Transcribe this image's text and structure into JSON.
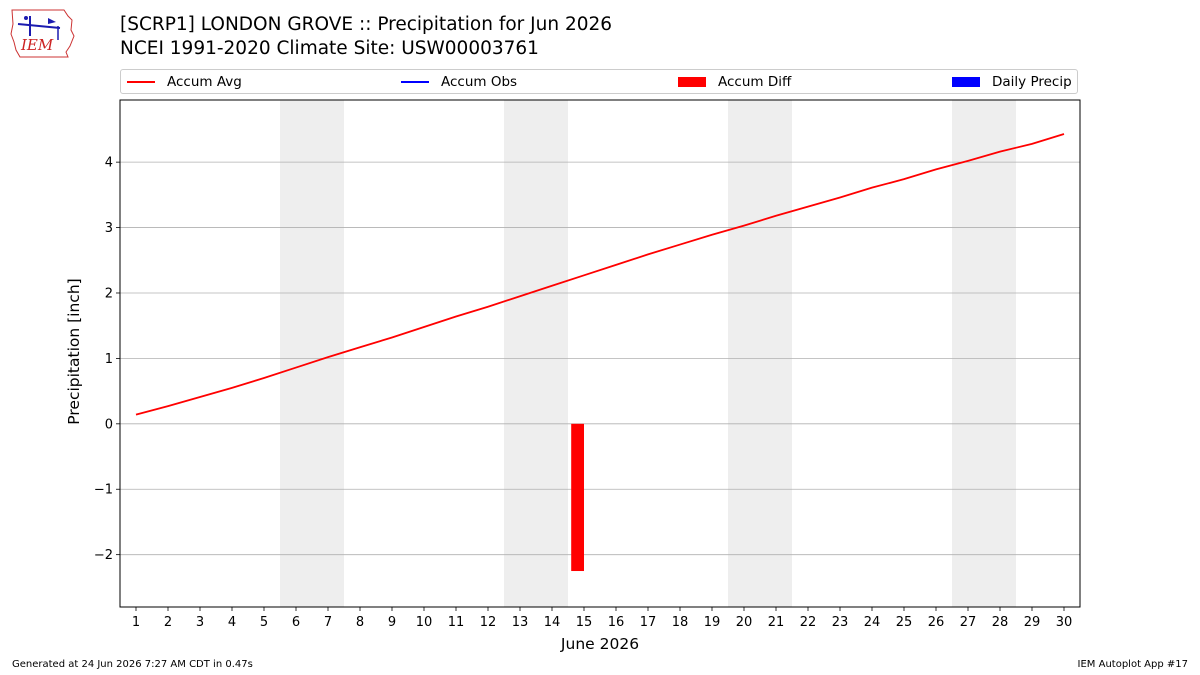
{
  "logo": {
    "text": "IEM"
  },
  "title": {
    "line1": "[SCRP1] LONDON GROVE :: Precipitation for Jun 2026",
    "line2": "NCEI 1991-2020 Climate Site: USW00003761"
  },
  "legend": {
    "accum_avg": "Accum Avg",
    "accum_obs": "Accum Obs",
    "accum_diff": "Accum Diff",
    "daily_precip": "Daily Precip"
  },
  "footer": {
    "left": "Generated at 24 Jun 2026 7:27 AM CDT in 0.47s",
    "right": "IEM Autoplot App #17"
  },
  "colors": {
    "accum_avg": "#ff0000",
    "accum_obs": "#0000ff",
    "accum_diff": "#ff0000",
    "daily_precip": "#0000ff",
    "weekend_shade": "#eeeeee",
    "grid": "#b0b0b0"
  },
  "chart_data": {
    "type": "line",
    "xlabel": "June 2026",
    "ylabel": "Precipitation [inch]",
    "xlim": [
      0.5,
      30.5
    ],
    "ylim": [
      -2.8,
      4.95
    ],
    "x_ticks": [
      1,
      2,
      3,
      4,
      5,
      6,
      7,
      8,
      9,
      10,
      11,
      12,
      13,
      14,
      15,
      16,
      17,
      18,
      19,
      20,
      21,
      22,
      23,
      24,
      25,
      26,
      27,
      28,
      29,
      30
    ],
    "y_ticks": [
      -2,
      -1,
      0,
      1,
      2,
      3,
      4
    ],
    "y_tick_labels": [
      "−2",
      "−1",
      "0",
      "1",
      "2",
      "3",
      "4"
    ],
    "grid": "horizontal",
    "legend_position": "top",
    "weekend_shading": [
      [
        6,
        7
      ],
      [
        13,
        14
      ],
      [
        20,
        21
      ],
      [
        27,
        28
      ]
    ],
    "series": [
      {
        "name": "Accum Avg",
        "kind": "line",
        "x": [
          1,
          2,
          3,
          4,
          5,
          6,
          7,
          8,
          9,
          10,
          11,
          12,
          13,
          14,
          15,
          16,
          17,
          18,
          19,
          20,
          21,
          22,
          23,
          24,
          25,
          26,
          27,
          28,
          29,
          30
        ],
        "values": [
          0.14,
          0.27,
          0.41,
          0.55,
          0.7,
          0.86,
          1.02,
          1.17,
          1.32,
          1.48,
          1.64,
          1.79,
          1.95,
          2.11,
          2.27,
          2.43,
          2.59,
          2.74,
          2.89,
          3.03,
          3.18,
          3.32,
          3.46,
          3.61,
          3.74,
          3.89,
          4.02,
          4.16,
          4.28,
          4.43
        ]
      },
      {
        "name": "Accum Obs",
        "kind": "line",
        "x": [],
        "values": []
      },
      {
        "name": "Accum Diff",
        "kind": "bar",
        "x": [
          14.8
        ],
        "values": [
          -2.25
        ]
      },
      {
        "name": "Daily Precip",
        "kind": "bar",
        "x": [],
        "values": []
      }
    ]
  }
}
